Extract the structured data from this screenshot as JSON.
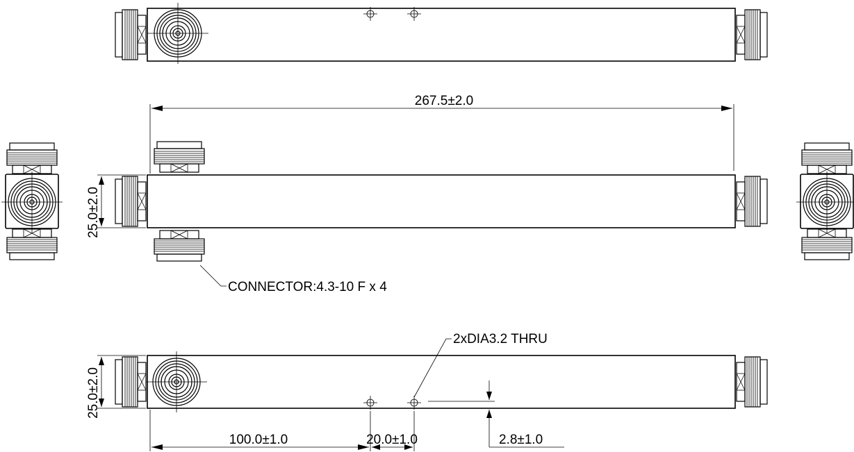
{
  "drawing": {
    "dimensions": {
      "length": "267.5±2.0",
      "height_side": "25.0±2.0",
      "height_bottom": "25.0±2.0",
      "hole_offset": "100.0±1.0",
      "hole_spacing": "20.0±1.0",
      "hole_height": "2.8±1.0"
    },
    "callouts": {
      "connector": "CONNECTOR:4.3-10 F x 4",
      "holes": "2xDIA3.2 THRU"
    }
  }
}
